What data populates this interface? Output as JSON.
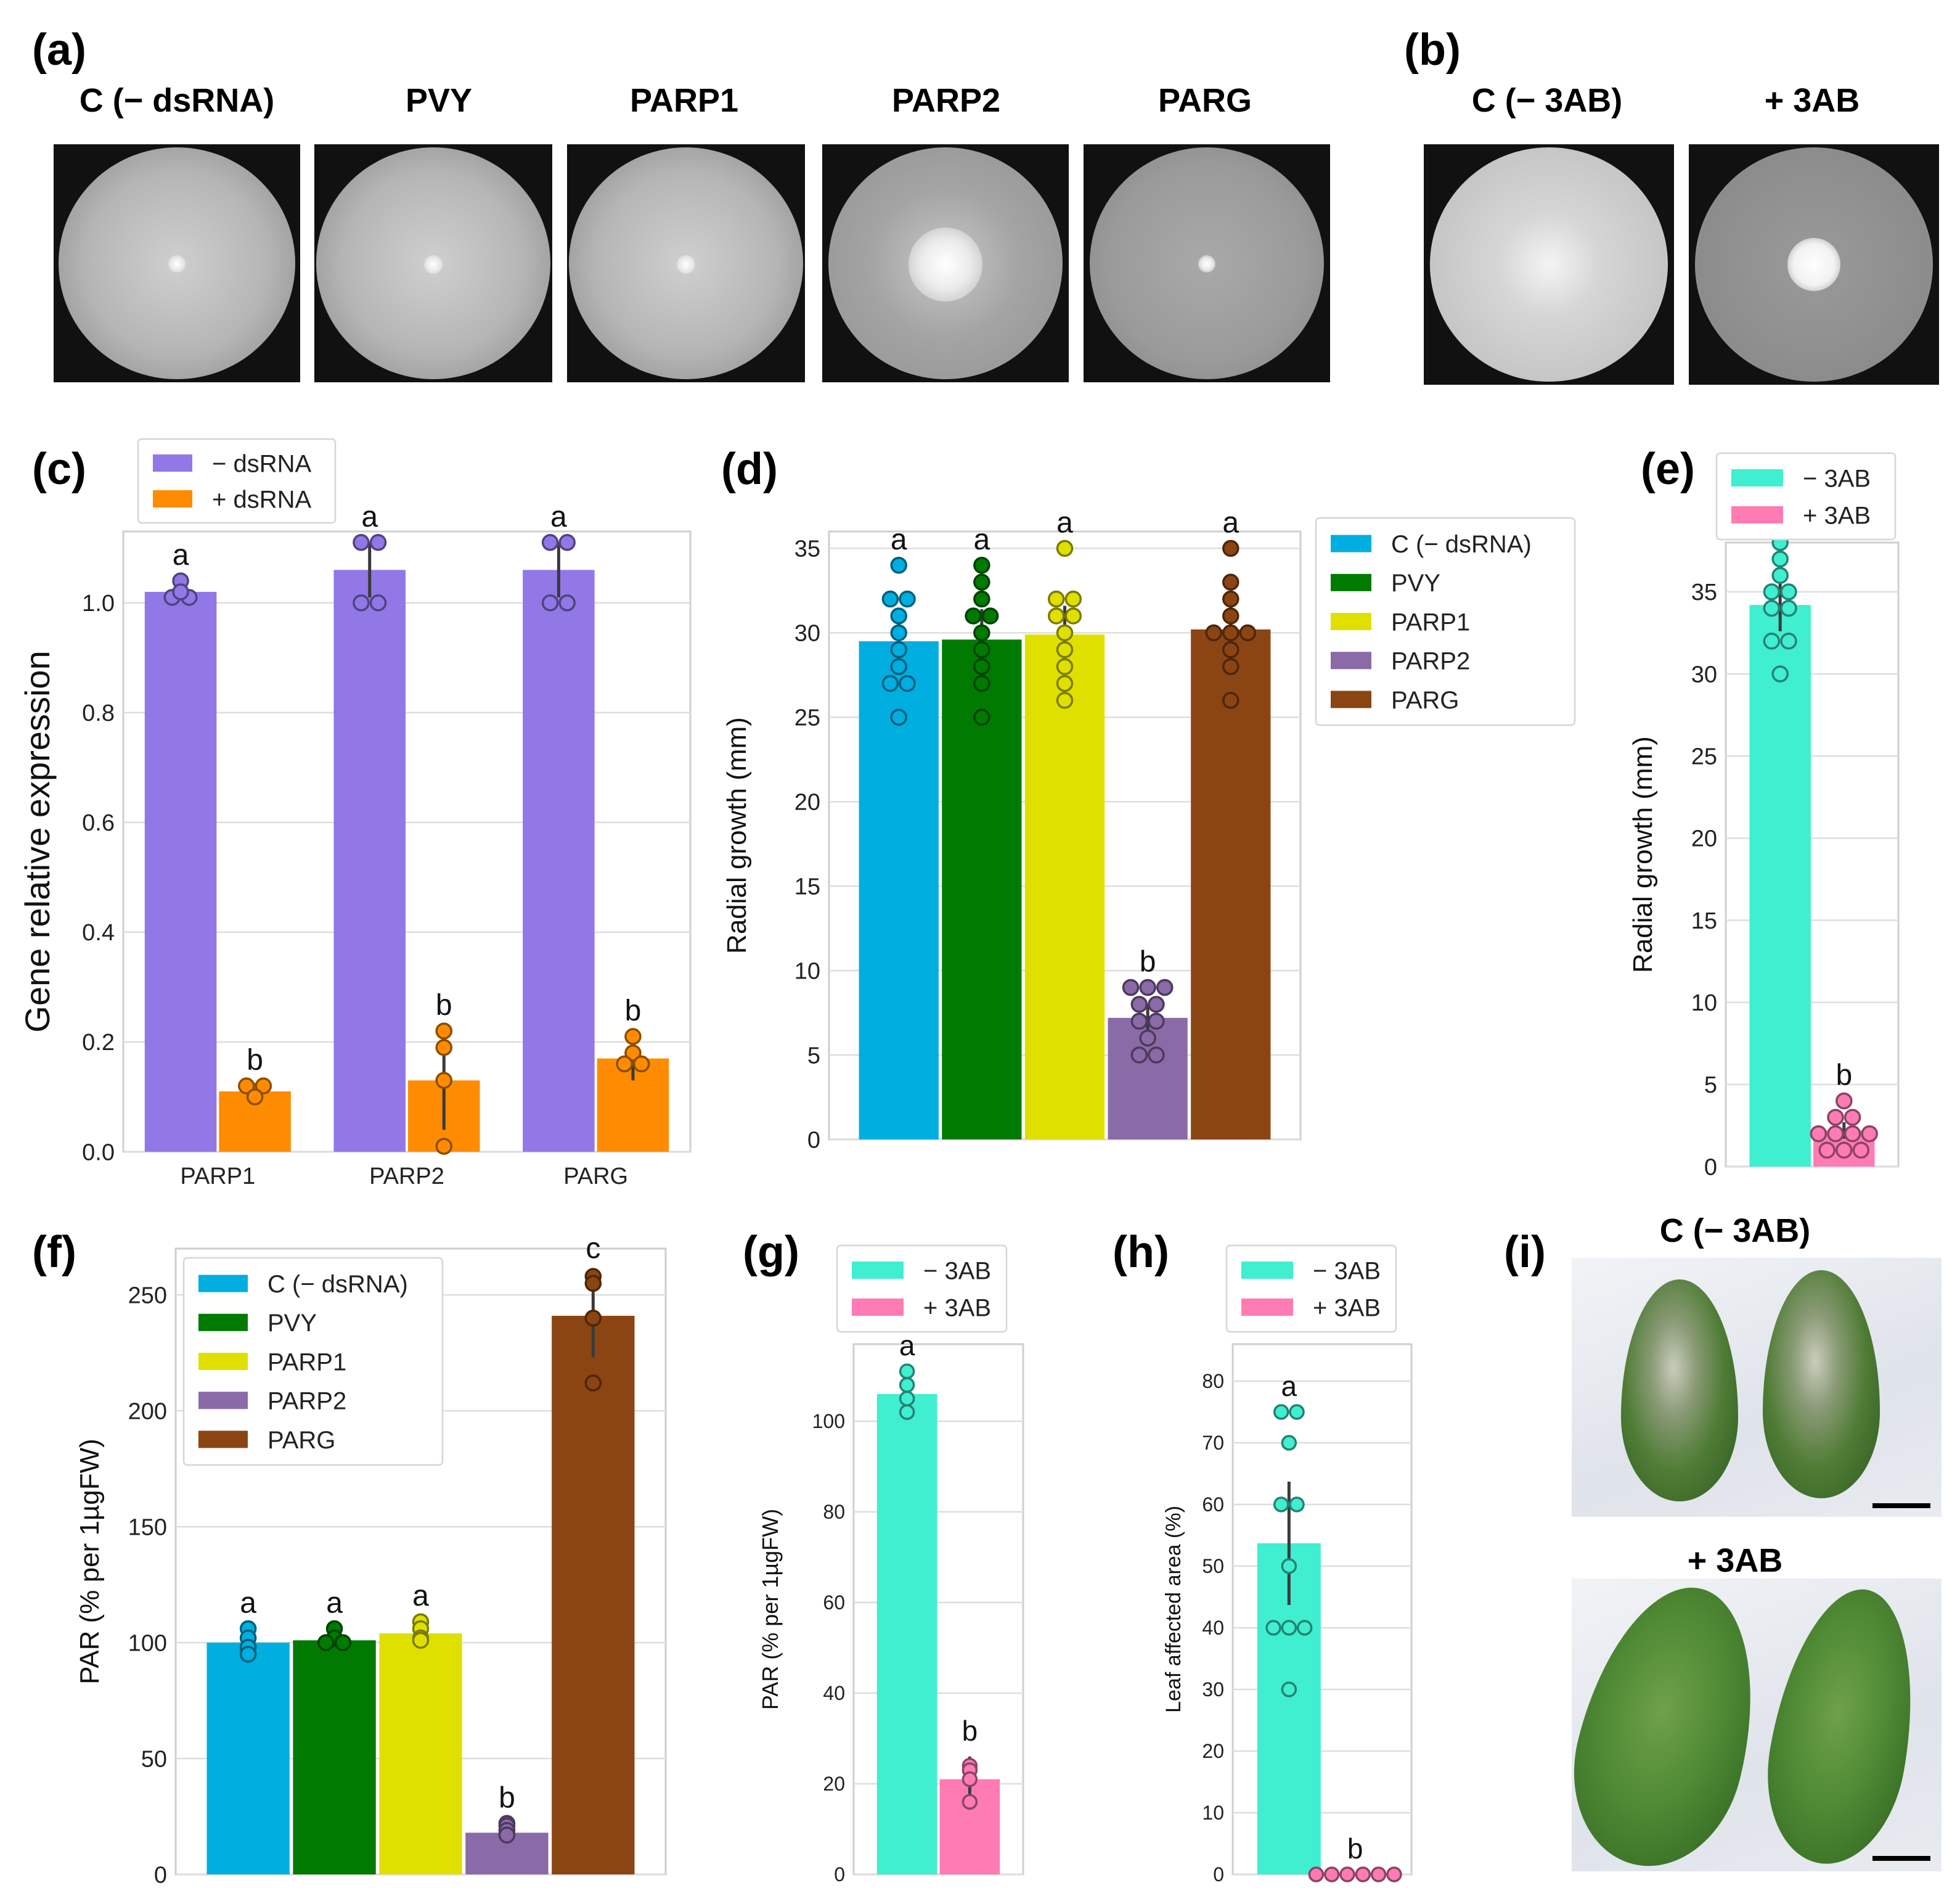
{
  "panels": {
    "a": "(a)",
    "b": "(b)",
    "c": "(c)",
    "d": "(d)",
    "e": "(e)",
    "f": "(f)",
    "g": "(g)",
    "h": "(h)",
    "i": "(i)"
  },
  "photos": {
    "a_labels": [
      "C (− dsRNA)",
      "PVY",
      "PARP1",
      "PARP2",
      "PARG"
    ],
    "b_labels": [
      "C (− 3AB)",
      "+ 3AB"
    ],
    "i_labels": [
      "C (− 3AB)",
      "+ 3AB"
    ]
  },
  "colors": {
    "purple": "#9178e6",
    "orange": "#ff8c00",
    "blue": "#00aee0",
    "green": "#007a00",
    "yellow": "#e0e000",
    "violet": "#8b6aa8",
    "brown": "#8b4513",
    "teal": "#40eed0",
    "pink": "#ff7bb4"
  },
  "chart_data": [
    {
      "id": "c",
      "type": "bar",
      "ylabel": "Gene relative expression",
      "categories": [
        "PARP1",
        "PARP2",
        "PARG"
      ],
      "ylim": [
        0,
        1.13
      ],
      "yticks": [
        0.0,
        0.2,
        0.4,
        0.6,
        0.8,
        1.0
      ],
      "yticklabels": [
        "0.0",
        "0.2",
        "0.4",
        "0.6",
        "0.8",
        "1.0"
      ],
      "legend": [
        "− dsRNA",
        "+ dsRNA"
      ],
      "legend_position": "top-left outside",
      "series": [
        {
          "name": "− dsRNA",
          "color": "#9178e6",
          "values": [
            1.02,
            1.06,
            1.06
          ],
          "err": [
            0.0,
            0.05,
            0.05
          ],
          "letters": [
            "a",
            "a",
            "a"
          ],
          "points": [
            [
              1.04,
              1.01,
              1.01,
              1.02
            ],
            [
              1.11,
              1.11,
              1.0,
              1.0
            ],
            [
              1.11,
              1.11,
              1.0,
              1.0
            ]
          ]
        },
        {
          "name": "+ dsRNA",
          "color": "#ff8c00",
          "values": [
            0.11,
            0.13,
            0.17
          ],
          "err": [
            0.0,
            0.09,
            0.04
          ],
          "letters": [
            "b",
            "b",
            "b"
          ],
          "points": [
            [
              0.11,
              0.12,
              0.12,
              0.1
            ],
            [
              0.22,
              0.19,
              0.13,
              0.01
            ],
            [
              0.21,
              0.18,
              0.16,
              0.16
            ]
          ]
        }
      ]
    },
    {
      "id": "d",
      "type": "bar",
      "ylabel": "Radial growth (mm)",
      "categories": [
        "C (− dsRNA)",
        "PVY",
        "PARP1",
        "PARP2",
        "PARG"
      ],
      "ylim": [
        0,
        36
      ],
      "yticks": [
        0,
        5,
        10,
        15,
        20,
        25,
        30,
        35
      ],
      "legend": [
        "C (− dsRNA)",
        "PVY",
        "PARP1",
        "PARP2",
        "PARG"
      ],
      "legend_position": "top-right outside",
      "values": [
        29.5,
        29.6,
        29.9,
        7.2,
        30.2
      ],
      "err": [
        1.8,
        1.8,
        1.7,
        0.8,
        1.7
      ],
      "colors": [
        "#00aee0",
        "#007a00",
        "#e0e000",
        "#8b6aa8",
        "#8b4513"
      ],
      "letters": [
        "a",
        "a",
        "a",
        "b",
        "a"
      ],
      "points": [
        [
          34,
          32,
          32,
          31,
          30,
          29,
          28,
          27,
          27,
          25
        ],
        [
          34,
          33,
          32,
          31,
          31,
          30,
          29,
          28,
          27,
          25
        ],
        [
          35,
          32,
          32,
          31,
          31,
          30,
          29,
          28,
          27,
          26
        ],
        [
          9,
          9,
          9,
          8,
          8,
          7,
          7,
          6,
          5,
          5
        ],
        [
          35,
          33,
          32,
          31,
          30,
          30,
          30,
          29,
          28,
          26
        ]
      ]
    },
    {
      "id": "e",
      "type": "bar",
      "ylabel": "Radial growth (mm)",
      "categories": [
        "− 3AB",
        "+ 3AB"
      ],
      "ylim": [
        0,
        38
      ],
      "yticks": [
        0,
        5,
        10,
        15,
        20,
        25,
        30,
        35
      ],
      "legend": [
        "− 3AB",
        "+ 3AB"
      ],
      "legend_position": "top",
      "values": [
        34.2,
        2.2
      ],
      "err": [
        1.6,
        0.5
      ],
      "colors": [
        "#40eed0",
        "#ff7bb4"
      ],
      "letters": [
        "a",
        "b"
      ],
      "points": [
        [
          38,
          37,
          36,
          35,
          35,
          34,
          34,
          32,
          32,
          30
        ],
        [
          4,
          3,
          3,
          2,
          2,
          2,
          2,
          1,
          1,
          1
        ]
      ]
    },
    {
      "id": "f",
      "type": "bar",
      "ylabel": "PAR (% per 1µgFW)",
      "categories": [
        "C (− dsRNA)",
        "PVY",
        "PARP1",
        "PARP2",
        "PARG"
      ],
      "ylim": [
        0,
        270
      ],
      "yticks": [
        0,
        50,
        100,
        150,
        200,
        250
      ],
      "legend": [
        "C (− dsRNA)",
        "PVY",
        "PARP1",
        "PARP2",
        "PARG"
      ],
      "legend_position": "top-left",
      "values": [
        100,
        101,
        104,
        18,
        241
      ],
      "err": [
        3,
        3,
        3,
        2,
        18
      ],
      "colors": [
        "#00aee0",
        "#007a00",
        "#e0e000",
        "#8b6aa8",
        "#8b4513"
      ],
      "letters": [
        "a",
        "a",
        "a",
        "b",
        "c"
      ],
      "points": [
        [
          106,
          102,
          98,
          95
        ],
        [
          106,
          102,
          100,
          100
        ],
        [
          109,
          106,
          102,
          101
        ],
        [
          22,
          21,
          19,
          17
        ],
        [
          258,
          255,
          240,
          212
        ]
      ]
    },
    {
      "id": "g",
      "type": "bar",
      "ylabel": "PAR (% per 1µgFW)",
      "categories": [
        "− 3AB",
        "+ 3AB"
      ],
      "ylim": [
        0,
        117
      ],
      "yticks": [
        0,
        20,
        40,
        60,
        80,
        100
      ],
      "legend": [
        "− 3AB",
        "+ 3AB"
      ],
      "legend_position": "top",
      "values": [
        106,
        21
      ],
      "err": [
        3,
        5
      ],
      "colors": [
        "#40eed0",
        "#ff7bb4"
      ],
      "letters": [
        "a",
        "b"
      ],
      "points": [
        [
          111,
          108,
          105,
          102
        ],
        [
          24,
          23,
          21,
          16
        ]
      ]
    },
    {
      "id": "h",
      "type": "bar",
      "ylabel": "Leaf affected area (%)",
      "categories": [
        "− 3AB",
        "+ 3AB"
      ],
      "ylim": [
        0,
        86
      ],
      "yticks": [
        0,
        10,
        20,
        30,
        40,
        50,
        60,
        70,
        80
      ],
      "legend": [
        "− 3AB",
        "+ 3AB"
      ],
      "legend_position": "top",
      "values": [
        53.7,
        0
      ],
      "err": [
        10,
        0
      ],
      "colors": [
        "#40eed0",
        "#ff7bb4"
      ],
      "letters": [
        "a",
        "b"
      ],
      "points": [
        [
          75,
          75,
          70,
          60,
          60,
          50,
          40,
          40,
          40,
          30
        ],
        [
          0,
          0,
          0,
          0,
          0,
          0
        ]
      ]
    }
  ]
}
